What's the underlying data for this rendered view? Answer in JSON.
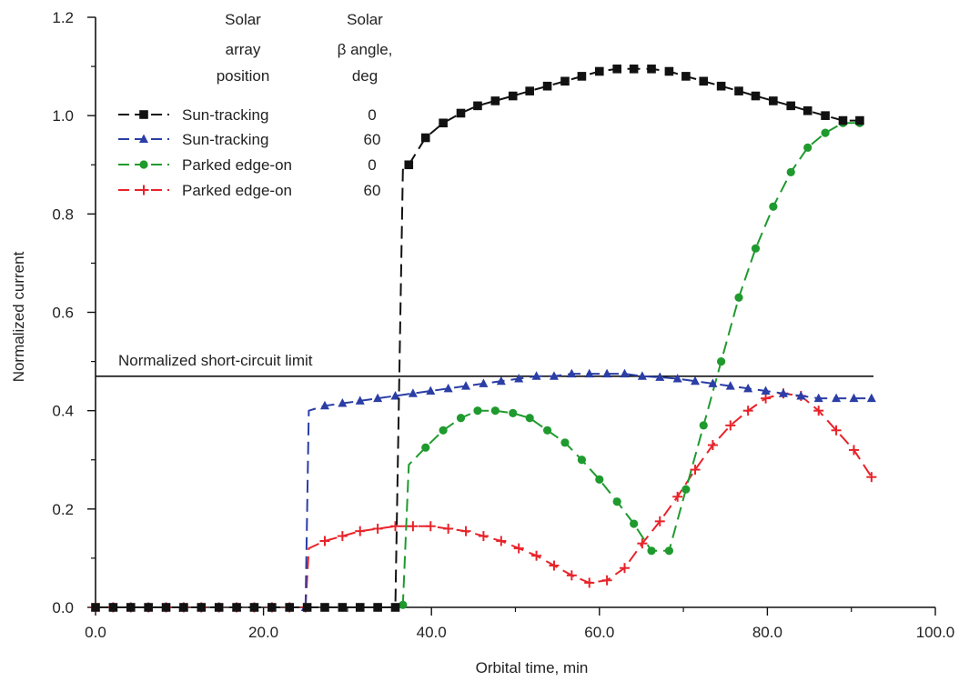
{
  "chart_data": {
    "type": "line",
    "xlabel": "Orbital time, min",
    "ylabel": "Normalized current",
    "xlim": [
      0,
      100
    ],
    "ylim": [
      0,
      1.2
    ],
    "x_ticks": [
      "0.0",
      "20.0",
      "40.0",
      "60.0",
      "80.0",
      "100.0"
    ],
    "y_ticks": [
      "0.0",
      "0.2",
      "0.4",
      "0.6",
      "0.8",
      "1.0",
      "1.2"
    ],
    "grid": false,
    "legend_position": "top-left",
    "legend_headers": {
      "position": [
        "Solar",
        "array",
        "position"
      ],
      "beta": [
        "Solar",
        "β angle,",
        "deg"
      ]
    },
    "reference_line": {
      "label": "Normalized short-circuit limit",
      "y": 0.47
    },
    "series": [
      {
        "position": "Sun-tracking",
        "beta": "0",
        "color": "#111111",
        "marker": "square",
        "x": [
          0,
          2.1,
          4.2,
          6.3,
          8.4,
          10.5,
          12.6,
          14.7,
          16.8,
          18.9,
          21,
          23.1,
          25.2,
          27.3,
          29.4,
          31.5,
          33.6,
          35.7,
          36.6,
          37.3,
          39.3,
          41.4,
          43.5,
          45.5,
          47.6,
          49.7,
          51.7,
          53.8,
          55.9,
          57.9,
          60,
          62.1,
          64.1,
          66.2,
          68.3,
          70.3,
          72.4,
          74.5,
          76.6,
          78.6,
          80.7,
          82.8,
          84.8,
          86.9,
          89,
          91
        ],
        "y": [
          0,
          0,
          0,
          0,
          0,
          0,
          0,
          0,
          0,
          0,
          0,
          0,
          0,
          0,
          0,
          0,
          0,
          0,
          0.89,
          0.9,
          0.955,
          0.985,
          1.005,
          1.02,
          1.03,
          1.04,
          1.05,
          1.06,
          1.07,
          1.08,
          1.09,
          1.095,
          1.095,
          1.095,
          1.09,
          1.08,
          1.07,
          1.06,
          1.05,
          1.04,
          1.03,
          1.02,
          1.01,
          1.0,
          0.99,
          0.99
        ]
      },
      {
        "position": "Sun-tracking",
        "beta": "60",
        "color": "#2b3ea6",
        "marker": "triangle",
        "x": [
          0,
          2.1,
          4.2,
          6.3,
          8.4,
          10.5,
          12.6,
          14.7,
          16.8,
          18.9,
          21,
          23.1,
          25.0,
          25.4,
          27.3,
          29.4,
          31.5,
          33.6,
          35.7,
          37.8,
          39.9,
          42,
          44.1,
          46.2,
          48.3,
          50.4,
          52.5,
          54.6,
          56.7,
          58.8,
          60.9,
          63,
          65.1,
          67.2,
          69.3,
          71.4,
          73.5,
          75.6,
          77.7,
          79.8,
          81.9,
          84,
          86.1,
          88.2,
          90.3,
          92.4
        ],
        "y": [
          0,
          0,
          0,
          0,
          0,
          0,
          0,
          0,
          0,
          0,
          0,
          0,
          0,
          0.4,
          0.41,
          0.415,
          0.42,
          0.425,
          0.43,
          0.435,
          0.44,
          0.445,
          0.45,
          0.455,
          0.46,
          0.465,
          0.47,
          0.47,
          0.475,
          0.475,
          0.475,
          0.475,
          0.47,
          0.468,
          0.465,
          0.46,
          0.455,
          0.45,
          0.445,
          0.44,
          0.435,
          0.43,
          0.425,
          0.425,
          0.425,
          0.425
        ]
      },
      {
        "position": "Parked edge-on",
        "beta": "0",
        "color": "#1f9a2e",
        "marker": "circle",
        "x": [
          0,
          2.1,
          4.2,
          6.3,
          8.4,
          10.5,
          12.6,
          14.7,
          16.8,
          18.9,
          21,
          23.1,
          25.2,
          27.3,
          29.4,
          31.5,
          33.6,
          35.7,
          36.6,
          37.3,
          39.3,
          41.4,
          43.5,
          45.5,
          47.6,
          49.7,
          51.7,
          53.8,
          55.9,
          57.9,
          60,
          62.1,
          64.1,
          66.2,
          68.3,
          70.3,
          72.4,
          74.5,
          76.6,
          78.6,
          80.7,
          82.8,
          84.8,
          86.9,
          89,
          91
        ],
        "y": [
          0,
          0,
          0,
          0,
          0,
          0,
          0,
          0,
          0,
          0,
          0,
          0,
          0,
          0,
          0,
          0,
          0,
          0,
          0.005,
          0.29,
          0.325,
          0.36,
          0.385,
          0.4,
          0.4,
          0.395,
          0.385,
          0.36,
          0.335,
          0.3,
          0.26,
          0.215,
          0.17,
          0.115,
          0.115,
          0.24,
          0.37,
          0.5,
          0.63,
          0.73,
          0.815,
          0.885,
          0.935,
          0.965,
          0.985,
          0.985
        ]
      },
      {
        "position": "Parked edge-on",
        "beta": "60",
        "color": "#e8232a",
        "marker": "plus",
        "x": [
          0,
          2.1,
          4.2,
          6.3,
          8.4,
          10.5,
          12.6,
          14.7,
          16.8,
          18.9,
          21,
          23.1,
          25.0,
          25.4,
          27.3,
          29.4,
          31.5,
          33.6,
          35.7,
          37.8,
          39.9,
          42,
          44.1,
          46.2,
          48.3,
          50.4,
          52.5,
          54.6,
          56.7,
          58.8,
          60.9,
          63,
          65.1,
          67.2,
          69.3,
          71.4,
          73.5,
          75.6,
          77.7,
          79.8,
          81.9,
          84,
          86.1,
          88.2,
          90.3,
          92.4
        ],
        "y": [
          0,
          0,
          0,
          0,
          0,
          0,
          0,
          0,
          0,
          0,
          0,
          0,
          0,
          0.12,
          0.135,
          0.145,
          0.155,
          0.16,
          0.165,
          0.165,
          0.165,
          0.16,
          0.155,
          0.145,
          0.135,
          0.12,
          0.105,
          0.085,
          0.065,
          0.05,
          0.055,
          0.08,
          0.13,
          0.175,
          0.225,
          0.28,
          0.33,
          0.37,
          0.4,
          0.425,
          0.435,
          0.43,
          0.4,
          0.36,
          0.32,
          0.265
        ]
      }
    ]
  }
}
